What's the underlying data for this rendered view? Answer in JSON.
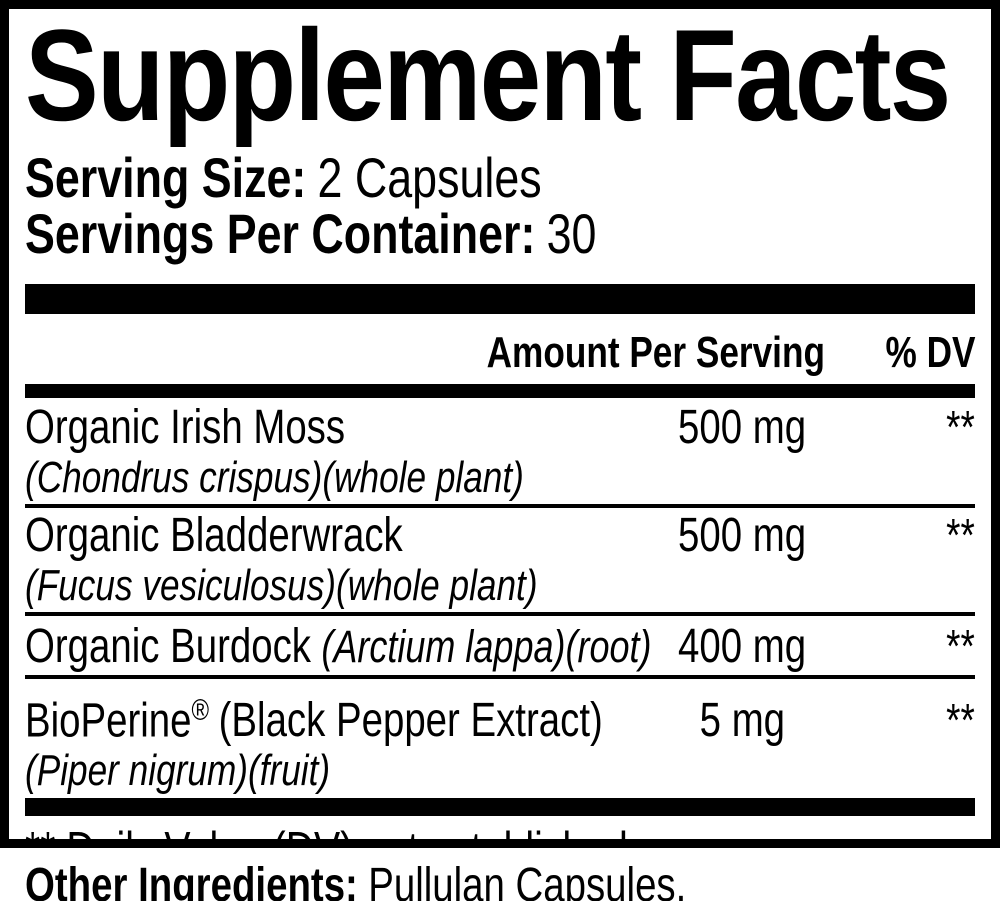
{
  "colors": {
    "ink": "#000000",
    "paper": "#ffffff"
  },
  "label": {
    "title": "Supplement Facts",
    "serving": {
      "size_label": "Serving Size:",
      "size_value": "2 Capsules",
      "per_container_label": "Servings Per Container:",
      "per_container_value": "30"
    },
    "columns": {
      "amount": "Amount Per Serving",
      "dv": "% DV"
    },
    "rows": [
      {
        "name": "Organic Irish Moss",
        "subtext": "(Chondrus crispus)(whole plant)",
        "amount": "500 mg",
        "dv": "**"
      },
      {
        "name": "Organic Bladderwrack",
        "subtext": "(Fucus vesiculosus)(whole plant)",
        "amount": "500 mg",
        "dv": "**"
      },
      {
        "name": "Organic Burdock",
        "name_italic": "(Arctium lappa)(root)",
        "amount": "400 mg",
        "dv": "**"
      },
      {
        "name": "BioPerine",
        "name_sup": "®",
        "name_note": "(Black Pepper Extract)",
        "subtext": "(Piper nigrum)(fruit)",
        "amount": "5 mg",
        "dv": "**"
      }
    ],
    "footnote": "** Daily Value (DV) not established",
    "other_ingredients": {
      "label": "Other Ingredients:",
      "value": "Pullulan Capsules."
    }
  }
}
